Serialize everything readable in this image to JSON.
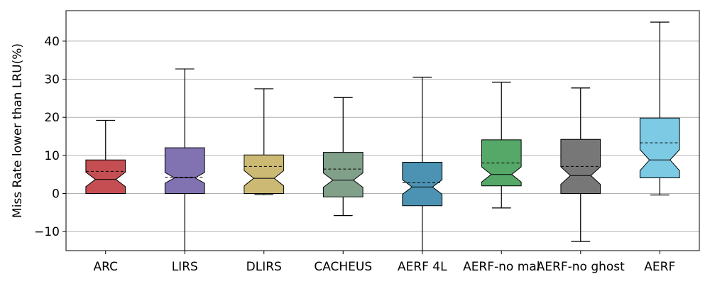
{
  "chart_data": {
    "type": "boxplot",
    "title": "",
    "xlabel": "",
    "ylabel": "Miss Rate lower than LRU(%)",
    "ylim": [
      -15,
      48
    ],
    "yticks": [
      -10,
      0,
      10,
      20,
      30,
      40
    ],
    "grid": "horizontal",
    "notched": true,
    "mean_line": "dashed",
    "series": [
      {
        "name": "ARC",
        "color": "#c44e52",
        "whisker_low": 0,
        "q1": 0,
        "median": 3.7,
        "q3": 8.8,
        "whisker_high": 19.2,
        "mean": 5.8,
        "notch_low": 1.8,
        "notch_high": 5.6
      },
      {
        "name": "LIRS",
        "color": "#8172b2",
        "whisker_low": -15,
        "q1": 0,
        "median": 4.1,
        "q3": 12.0,
        "whisker_high": 32.7,
        "mean": 4.3,
        "notch_low": 2.7,
        "notch_high": 5.5
      },
      {
        "name": "DLIRS",
        "color": "#ccb974",
        "whisker_low": -0.3,
        "q1": 0,
        "median": 4.0,
        "q3": 10.1,
        "whisker_high": 27.5,
        "mean": 7.1,
        "notch_low": 2.0,
        "notch_high": 6.0
      },
      {
        "name": "CACHEUS",
        "color": "#80a08a",
        "whisker_low": -5.8,
        "q1": -0.9,
        "median": 3.5,
        "q3": 10.8,
        "whisker_high": 25.2,
        "mean": 6.4,
        "notch_low": 1.6,
        "notch_high": 5.4
      },
      {
        "name": "AERF 4L",
        "color": "#4c92b2",
        "whisker_low": -15,
        "q1": -3.2,
        "median": 1.7,
        "q3": 8.2,
        "whisker_high": 30.5,
        "mean": 2.8,
        "notch_low": -0.2,
        "notch_high": 3.6
      },
      {
        "name": "AERF-no mal",
        "color": "#55a868",
        "whisker_low": -3.8,
        "q1": 2.0,
        "median": 5.0,
        "q3": 14.1,
        "whisker_high": 29.2,
        "mean": 8.0,
        "notch_low": 3.0,
        "notch_high": 7.0
      },
      {
        "name": "AERF-no ghost",
        "color": "#777777",
        "whisker_low": -12.6,
        "q1": 0,
        "median": 4.7,
        "q3": 14.2,
        "whisker_high": 27.7,
        "mean": 7.1,
        "notch_low": 2.4,
        "notch_high": 7.0
      },
      {
        "name": "AERF",
        "color": "#7ccae4",
        "whisker_low": -0.4,
        "q1": 4.1,
        "median": 8.8,
        "q3": 19.8,
        "whisker_high": 45.0,
        "mean": 13.3,
        "notch_low": 6.0,
        "notch_high": 11.5
      }
    ]
  }
}
